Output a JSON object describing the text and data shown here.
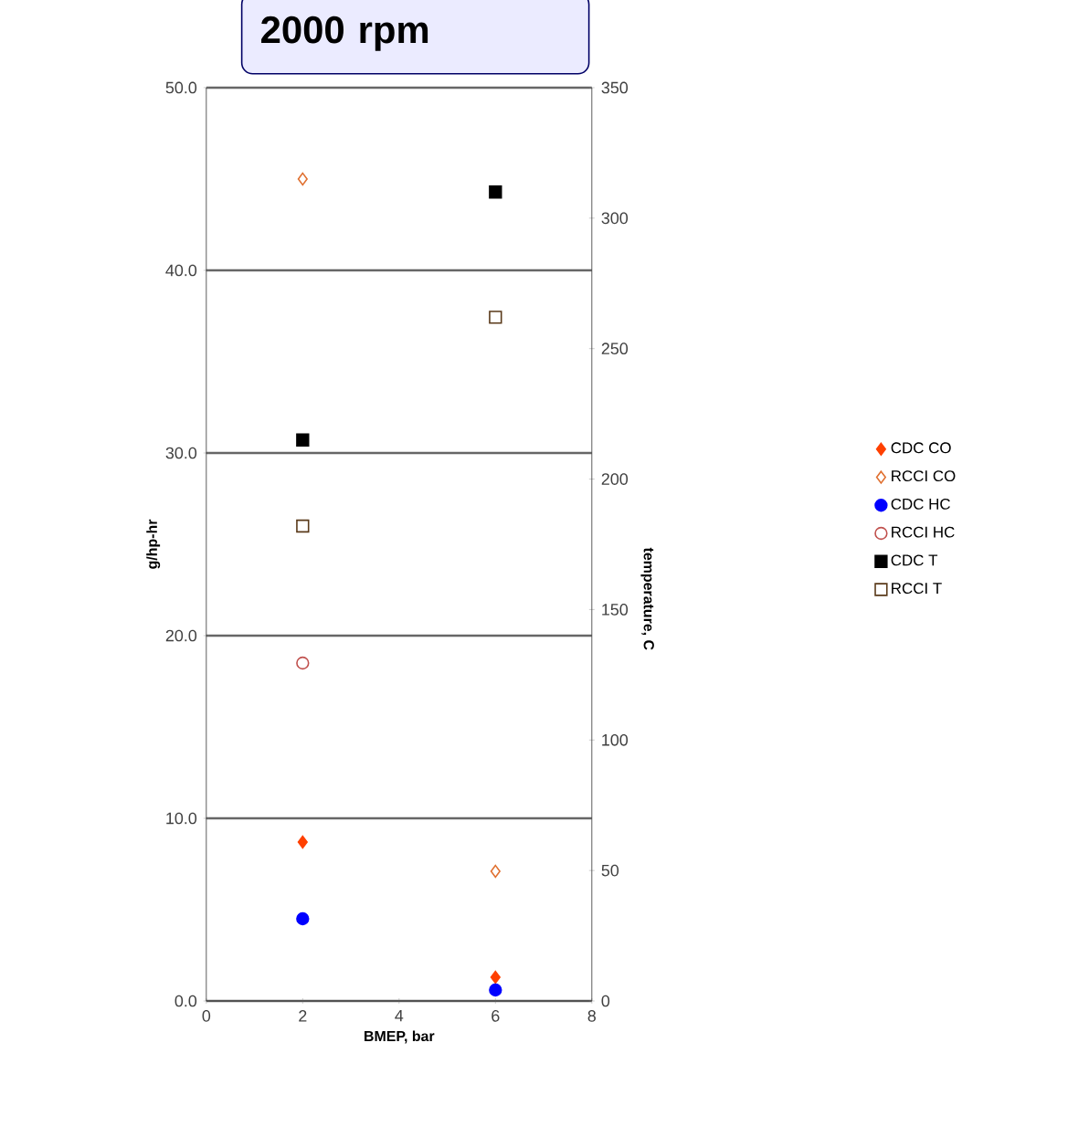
{
  "chart_data": {
    "type": "scatter",
    "title": "2000 rpm",
    "xlabel": "BMEP, bar",
    "ylabel": "g/hp-hr",
    "y2label": "temperature, C",
    "x": [
      2,
      6
    ],
    "series": [
      {
        "name": "CDC CO",
        "color": "#ff4000",
        "marker": "diamond",
        "values": [
          8.7,
          1.3
        ]
      },
      {
        "name": "RCCI CO",
        "color": "#e07030",
        "marker": "diamond",
        "values": [
          45.0,
          7.1
        ]
      },
      {
        "name": "CDC HC",
        "color": "#0000ff",
        "marker": "circle",
        "values": [
          4.5,
          0.6
        ]
      },
      {
        "name": "RCCI HC",
        "color": "#c0504d",
        "marker": "circle",
        "values": [
          18.5,
          null
        ]
      },
      {
        "name": "CDC T",
        "color": "#000000",
        "marker": "square",
        "axis": "y2",
        "values": [
          215,
          310
        ]
      },
      {
        "name": "RCCI T",
        "color": "#5a3a1a",
        "marker": "square",
        "axis": "y2",
        "values": [
          182,
          262
        ]
      }
    ],
    "xlim": [
      0,
      8
    ],
    "xticks": [
      0,
      2,
      4,
      6,
      8
    ],
    "ylim": [
      0,
      50
    ],
    "yticks": [
      {
        "value": 0,
        "label": "0.0"
      },
      {
        "value": 10,
        "label": "10.0"
      },
      {
        "value": 20,
        "label": "20.0"
      },
      {
        "value": 30,
        "label": "30.0"
      },
      {
        "value": 40,
        "label": "40.0"
      },
      {
        "value": 50,
        "label": "50.0"
      }
    ],
    "y2lim": [
      0,
      350
    ],
    "y2ticks": [
      0,
      50,
      100,
      150,
      200,
      250,
      300,
      350
    ],
    "grid": "y",
    "legend": "right"
  }
}
